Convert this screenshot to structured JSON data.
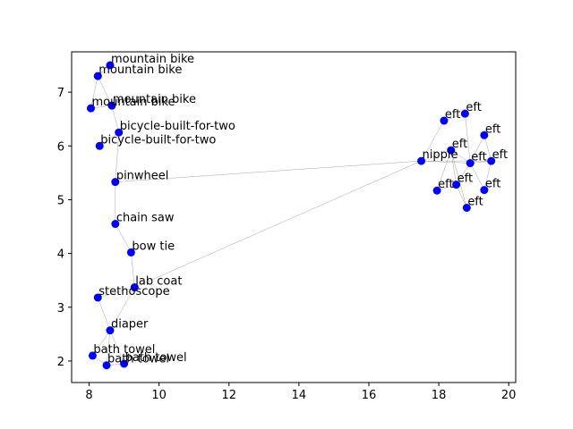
{
  "chart_data": {
    "type": "scatter",
    "title": "",
    "xlabel": "",
    "ylabel": "",
    "xlim": [
      7.5,
      20.2
    ],
    "ylim": [
      1.6,
      7.75
    ],
    "xticks": [
      8,
      10,
      12,
      14,
      16,
      18,
      20
    ],
    "yticks": [
      2,
      3,
      4,
      5,
      6,
      7
    ],
    "grid": false,
    "colors": {
      "point": "#0000ff",
      "edge": "#808080"
    },
    "points": [
      {
        "label": "mountain bike",
        "x": 8.6,
        "y": 7.5
      },
      {
        "label": "mountain bike",
        "x": 8.25,
        "y": 7.3
      },
      {
        "label": "mountain bike",
        "x": 8.05,
        "y": 6.7
      },
      {
        "label": "mountain bike",
        "x": 8.65,
        "y": 6.75
      },
      {
        "label": "bicycle-built-for-two",
        "x": 8.85,
        "y": 6.25
      },
      {
        "label": "bicycle-built-for-two",
        "x": 8.3,
        "y": 6.0
      },
      {
        "label": "pinwheel",
        "x": 8.75,
        "y": 5.33
      },
      {
        "label": "chain saw",
        "x": 8.75,
        "y": 4.55
      },
      {
        "label": "bow tie",
        "x": 9.2,
        "y": 4.02
      },
      {
        "label": "lab coat",
        "x": 9.3,
        "y": 3.37
      },
      {
        "label": "stethoscope",
        "x": 8.25,
        "y": 3.18
      },
      {
        "label": "diaper",
        "x": 8.6,
        "y": 2.57
      },
      {
        "label": "bath towel",
        "x": 8.1,
        "y": 2.1
      },
      {
        "label": "bath towel",
        "x": 8.5,
        "y": 1.92
      },
      {
        "label": "bath towel",
        "x": 9.0,
        "y": 1.95
      },
      {
        "label": "nipple",
        "x": 17.5,
        "y": 5.72
      },
      {
        "label": "eft",
        "x": 18.15,
        "y": 6.47
      },
      {
        "label": "eft",
        "x": 18.75,
        "y": 6.6
      },
      {
        "label": "eft",
        "x": 19.3,
        "y": 6.2
      },
      {
        "label": "eft",
        "x": 18.35,
        "y": 5.92
      },
      {
        "label": "eft",
        "x": 18.9,
        "y": 5.68
      },
      {
        "label": "eft",
        "x": 19.5,
        "y": 5.72
      },
      {
        "label": "eft",
        "x": 18.5,
        "y": 5.28
      },
      {
        "label": "eft",
        "x": 17.95,
        "y": 5.17
      },
      {
        "label": "eft",
        "x": 19.3,
        "y": 5.18
      },
      {
        "label": "eft",
        "x": 18.8,
        "y": 4.85
      }
    ],
    "edges": [
      [
        0,
        1
      ],
      [
        1,
        2
      ],
      [
        1,
        3
      ],
      [
        2,
        3
      ],
      [
        3,
        4
      ],
      [
        4,
        5
      ],
      [
        4,
        6
      ],
      [
        6,
        7
      ],
      [
        7,
        8
      ],
      [
        8,
        9
      ],
      [
        9,
        10
      ],
      [
        9,
        11
      ],
      [
        10,
        11
      ],
      [
        11,
        12
      ],
      [
        11,
        13
      ],
      [
        11,
        14
      ],
      [
        12,
        13
      ],
      [
        13,
        14
      ],
      [
        6,
        15
      ],
      [
        9,
        15
      ],
      [
        15,
        16
      ],
      [
        15,
        19
      ],
      [
        15,
        20
      ],
      [
        15,
        21
      ],
      [
        16,
        17
      ],
      [
        17,
        20
      ],
      [
        18,
        21
      ],
      [
        18,
        20
      ],
      [
        19,
        20
      ],
      [
        19,
        22
      ],
      [
        20,
        21
      ],
      [
        20,
        22
      ],
      [
        20,
        24
      ],
      [
        22,
        23
      ],
      [
        22,
        25
      ],
      [
        23,
        19
      ],
      [
        24,
        21
      ],
      [
        25,
        19
      ]
    ]
  }
}
